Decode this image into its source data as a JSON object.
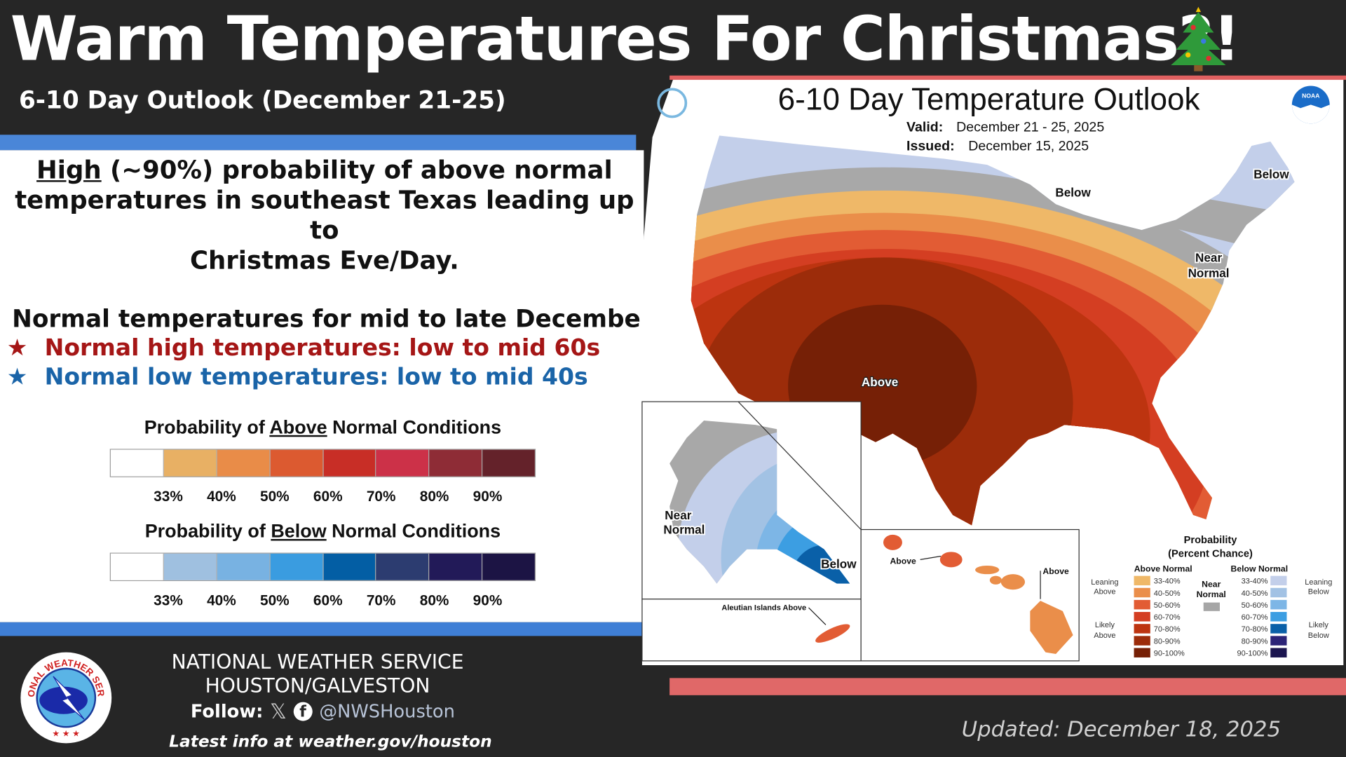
{
  "header": {
    "title": "Warm Temperatures For Christmas?!",
    "tree_icon": "christmas-tree-icon",
    "subtitle": "6-10 Day Outlook (December 21-25)"
  },
  "summary": {
    "high_word": "High",
    "line1_rest": " (~90%) probability of above normal",
    "line2": "temperatures in southeast Texas leading up to",
    "line3": "Christmas Eve/Day."
  },
  "normals": {
    "heading": "Normal temperatures for mid to late December:",
    "high": "Normal high temperatures: low to mid 60s",
    "low": "Normal low temperatures: low to mid 40s",
    "high_color": "#a51616",
    "low_color": "#1a64a8"
  },
  "above_scale": {
    "prefix": "Probability of ",
    "word": "Above",
    "suffix": " Normal Conditions",
    "colors": [
      "#ffffff",
      "#e8b064",
      "#e98c48",
      "#dc5a30",
      "#c82e26",
      "#cc3148",
      "#8e2c36",
      "#64222a"
    ],
    "labels": [
      "33%",
      "40%",
      "50%",
      "60%",
      "70%",
      "80%",
      "90%"
    ]
  },
  "below_scale": {
    "prefix": "Probability of ",
    "word": "Below",
    "suffix": " Normal Conditions",
    "colors": [
      "#ffffff",
      "#9fc0e0",
      "#78b2e2",
      "#3a9ce0",
      "#035ea4",
      "#2c3c70",
      "#221a58",
      "#1c1444"
    ],
    "labels": [
      "33%",
      "40%",
      "50%",
      "60%",
      "70%",
      "80%",
      "90%"
    ]
  },
  "map": {
    "title": "6-10 Day Temperature Outlook",
    "valid_label": "Valid:",
    "valid": "December 21 - 25, 2025",
    "issued_label": "Issued:",
    "issued": "December 15, 2025",
    "labels": {
      "below_north": "Below",
      "below_ne": "Below",
      "near1": "Near",
      "near2": "Normal",
      "above_sw": "Above",
      "ak_near1": "Near",
      "ak_near2": "Normal",
      "ak_below": "Below",
      "hi_above1": "Above",
      "hi_above2": "Above",
      "aleutian": "Aleutian Islands Above"
    },
    "legend": {
      "title1": "Probability",
      "title2": "(Percent Chance)",
      "above_heading": "Above Normal",
      "below_heading": "Below Normal",
      "near1": "Near",
      "near2": "Normal",
      "near_color": "#a6a6a6",
      "leaning_above": [
        "Leaning",
        "Above"
      ],
      "likely_above": [
        "Likely",
        "Above"
      ],
      "leaning_below": [
        "Leaning",
        "Below"
      ],
      "likely_below": [
        "Likely",
        "Below"
      ],
      "above": [
        {
          "range": "33-40%",
          "color": "#efb868"
        },
        {
          "range": "40-50%",
          "color": "#ea8e4a"
        },
        {
          "range": "50-60%",
          "color": "#e25c34"
        },
        {
          "range": "60-70%",
          "color": "#d43e22"
        },
        {
          "range": "70-80%",
          "color": "#bd3410"
        },
        {
          "range": "80-90%",
          "color": "#9c2c0a"
        },
        {
          "range": "90-100%",
          "color": "#762006"
        }
      ],
      "below": [
        {
          "range": "33-40%",
          "color": "#c3cfea"
        },
        {
          "range": "40-50%",
          "color": "#a2c2e4"
        },
        {
          "range": "50-60%",
          "color": "#7db6e6"
        },
        {
          "range": "60-70%",
          "color": "#3c9ee2"
        },
        {
          "range": "70-80%",
          "color": "#0a60a8"
        },
        {
          "range": "80-90%",
          "color": "#2c2478"
        },
        {
          "range": "90-100%",
          "color": "#1c1650"
        }
      ]
    }
  },
  "footer": {
    "org": "NATIONAL WEATHER SERVICE",
    "office": "HOUSTON/GALVESTON",
    "follow": "Follow:",
    "handle": "@NWSHouston",
    "latest": "Latest info at weather.gov/houston",
    "updated": "Updated: December 18, 2025",
    "logo_text": "NATIONAL WEATHER SERVICE"
  }
}
